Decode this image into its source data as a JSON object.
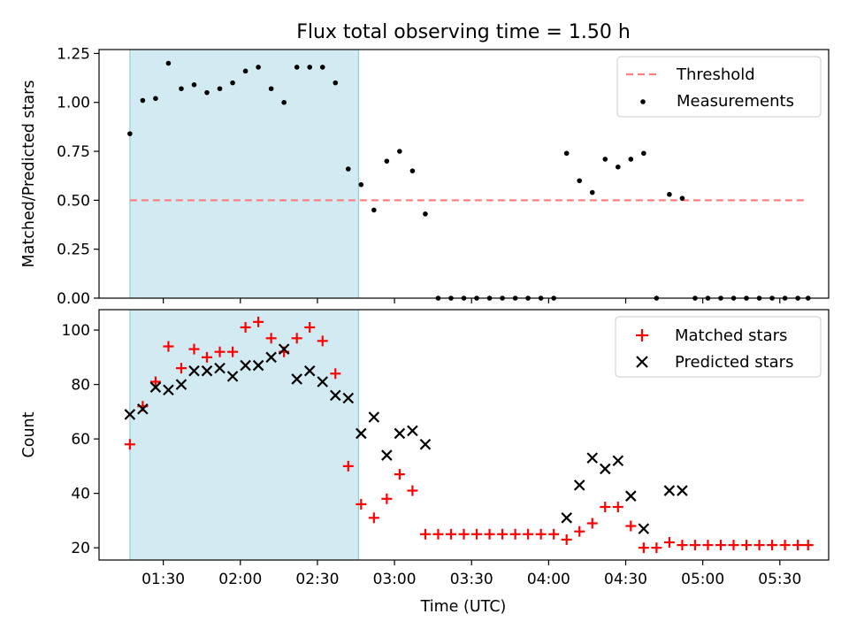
{
  "title": "Flux total observing time = 1.50 h",
  "colors": {
    "threshold": "#ff8080",
    "measurements": "#000000",
    "matched": "#ff0000",
    "predicted": "#000000",
    "shade": "#add8e6"
  },
  "chart_data": [
    {
      "type": "scatter",
      "panel": "top",
      "title": "Flux total observing time = 1.50 h",
      "ylabel": "Matched/Predicted stars",
      "xlabel": "",
      "xlim": [
        "01:05",
        "05:49"
      ],
      "ylim": [
        0,
        1.27
      ],
      "yticks": [
        "0.00",
        "0.25",
        "0.50",
        "0.75",
        "1.00",
        "1.25"
      ],
      "legend_position": "top-right",
      "shaded_interval": [
        "01:17",
        "02:46"
      ],
      "threshold": {
        "name": "Threshold",
        "style": "dashed",
        "y": 0.5,
        "x_range": [
          "01:17",
          "05:41"
        ]
      },
      "series": [
        {
          "name": "Measurements",
          "marker": "dot",
          "points": [
            [
              "01:17",
              0.84
            ],
            [
              "01:22",
              1.01
            ],
            [
              "01:27",
              1.02
            ],
            [
              "01:32",
              1.2
            ],
            [
              "01:37",
              1.07
            ],
            [
              "01:42",
              1.09
            ],
            [
              "01:47",
              1.05
            ],
            [
              "01:52",
              1.07
            ],
            [
              "01:57",
              1.1
            ],
            [
              "02:02",
              1.16
            ],
            [
              "02:07",
              1.18
            ],
            [
              "02:12",
              1.07
            ],
            [
              "02:17",
              1.0
            ],
            [
              "02:22",
              1.18
            ],
            [
              "02:27",
              1.18
            ],
            [
              "02:32",
              1.18
            ],
            [
              "02:37",
              1.1
            ],
            [
              "02:42",
              0.66
            ],
            [
              "02:47",
              0.58
            ],
            [
              "02:52",
              0.45
            ],
            [
              "02:57",
              0.7
            ],
            [
              "03:02",
              0.75
            ],
            [
              "03:07",
              0.65
            ],
            [
              "03:12",
              0.43
            ],
            [
              "03:17",
              0.0
            ],
            [
              "03:22",
              0.0
            ],
            [
              "03:27",
              0.0
            ],
            [
              "03:32",
              0.0
            ],
            [
              "03:37",
              0.0
            ],
            [
              "03:42",
              0.0
            ],
            [
              "03:47",
              0.0
            ],
            [
              "03:52",
              0.0
            ],
            [
              "03:57",
              0.0
            ],
            [
              "04:02",
              0.0
            ],
            [
              "04:07",
              0.74
            ],
            [
              "04:12",
              0.6
            ],
            [
              "04:17",
              0.54
            ],
            [
              "04:22",
              0.71
            ],
            [
              "04:27",
              0.67
            ],
            [
              "04:32",
              0.71
            ],
            [
              "04:37",
              0.74
            ],
            [
              "04:42",
              0.0
            ],
            [
              "04:47",
              0.53
            ],
            [
              "04:52",
              0.51
            ],
            [
              "04:57",
              0.0
            ],
            [
              "05:02",
              0.0
            ],
            [
              "05:07",
              0.0
            ],
            [
              "05:12",
              0.0
            ],
            [
              "05:17",
              0.0
            ],
            [
              "05:22",
              0.0
            ],
            [
              "05:27",
              0.0
            ],
            [
              "05:32",
              0.0
            ],
            [
              "05:37",
              0.0
            ],
            [
              "05:41",
              0.0
            ]
          ]
        }
      ]
    },
    {
      "type": "scatter",
      "panel": "bottom",
      "xlabel": "Time (UTC)",
      "ylabel": "Count",
      "xlim": [
        "01:05",
        "05:49"
      ],
      "ylim": [
        15.5,
        107.5
      ],
      "yticks": [
        "20",
        "40",
        "60",
        "80",
        "100"
      ],
      "xticks": [
        "01:30",
        "02:00",
        "02:30",
        "03:00",
        "03:30",
        "04:00",
        "04:30",
        "05:00",
        "05:30"
      ],
      "legend_position": "top-right",
      "shaded_interval": [
        "01:17",
        "02:46"
      ],
      "series": [
        {
          "name": "Matched stars",
          "marker": "plus",
          "points": [
            [
              "01:17",
              58
            ],
            [
              "01:22",
              72
            ],
            [
              "01:27",
              81
            ],
            [
              "01:32",
              94
            ],
            [
              "01:37",
              86
            ],
            [
              "01:42",
              93
            ],
            [
              "01:47",
              90
            ],
            [
              "01:52",
              92
            ],
            [
              "01:57",
              92
            ],
            [
              "02:02",
              101
            ],
            [
              "02:07",
              103
            ],
            [
              "02:12",
              97
            ],
            [
              "02:17",
              92
            ],
            [
              "02:22",
              97
            ],
            [
              "02:27",
              101
            ],
            [
              "02:32",
              96
            ],
            [
              "02:37",
              84
            ],
            [
              "02:42",
              50
            ],
            [
              "02:47",
              36
            ],
            [
              "02:52",
              31
            ],
            [
              "02:57",
              38
            ],
            [
              "03:02",
              47
            ],
            [
              "03:07",
              41
            ],
            [
              "03:12",
              25
            ],
            [
              "03:17",
              25
            ],
            [
              "03:22",
              25
            ],
            [
              "03:27",
              25
            ],
            [
              "03:32",
              25
            ],
            [
              "03:37",
              25
            ],
            [
              "03:42",
              25
            ],
            [
              "03:47",
              25
            ],
            [
              "03:52",
              25
            ],
            [
              "03:57",
              25
            ],
            [
              "04:02",
              25
            ],
            [
              "04:07",
              23
            ],
            [
              "04:12",
              26
            ],
            [
              "04:17",
              29
            ],
            [
              "04:22",
              35
            ],
            [
              "04:27",
              35
            ],
            [
              "04:32",
              28
            ],
            [
              "04:37",
              20
            ],
            [
              "04:42",
              20
            ],
            [
              "04:47",
              22
            ],
            [
              "04:52",
              21
            ],
            [
              "04:57",
              21
            ],
            [
              "05:02",
              21
            ],
            [
              "05:07",
              21
            ],
            [
              "05:12",
              21
            ],
            [
              "05:17",
              21
            ],
            [
              "05:22",
              21
            ],
            [
              "05:27",
              21
            ],
            [
              "05:32",
              21
            ],
            [
              "05:37",
              21
            ],
            [
              "05:41",
              21
            ]
          ]
        },
        {
          "name": "Predicted stars",
          "marker": "x",
          "points": [
            [
              "01:17",
              69
            ],
            [
              "01:22",
              71
            ],
            [
              "01:27",
              79
            ],
            [
              "01:32",
              78
            ],
            [
              "01:37",
              80
            ],
            [
              "01:42",
              85
            ],
            [
              "01:47",
              85
            ],
            [
              "01:52",
              86
            ],
            [
              "01:57",
              83
            ],
            [
              "02:02",
              87
            ],
            [
              "02:07",
              87
            ],
            [
              "02:12",
              90
            ],
            [
              "02:17",
              93
            ],
            [
              "02:22",
              82
            ],
            [
              "02:27",
              85
            ],
            [
              "02:32",
              81
            ],
            [
              "02:37",
              76
            ],
            [
              "02:42",
              75
            ],
            [
              "02:47",
              62
            ],
            [
              "02:52",
              68
            ],
            [
              "02:57",
              54
            ],
            [
              "03:02",
              62
            ],
            [
              "03:07",
              63
            ],
            [
              "03:12",
              58
            ],
            [
              "04:07",
              31
            ],
            [
              "04:12",
              43
            ],
            [
              "04:17",
              53
            ],
            [
              "04:22",
              49
            ],
            [
              "04:27",
              52
            ],
            [
              "04:32",
              39
            ],
            [
              "04:37",
              27
            ],
            [
              "04:47",
              41
            ],
            [
              "04:52",
              41
            ]
          ]
        }
      ]
    }
  ]
}
